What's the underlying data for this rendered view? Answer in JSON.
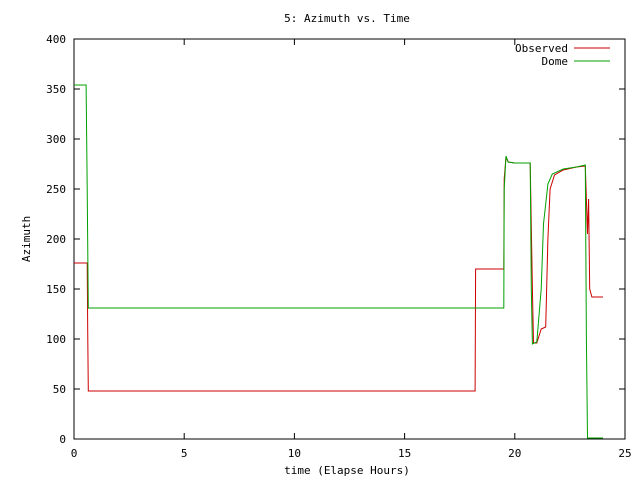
{
  "chart_data": {
    "type": "line",
    "title": "5: Azimuth vs. Time",
    "xlabel": "time (Elapse Hours)",
    "ylabel": "Azimuth",
    "xlim": [
      0,
      25
    ],
    "ylim": [
      0,
      400
    ],
    "xticks": [
      0,
      5,
      10,
      15,
      20,
      25
    ],
    "yticks": [
      0,
      50,
      100,
      150,
      200,
      250,
      300,
      350,
      400
    ],
    "grid": false,
    "legend": "top-right",
    "series": [
      {
        "name": "Observed",
        "color": "#cc0000",
        "points": [
          [
            0,
            176
          ],
          [
            0.6,
            176
          ],
          [
            0.62,
            110
          ],
          [
            0.65,
            48
          ],
          [
            18.2,
            48
          ],
          [
            18.22,
            170
          ],
          [
            19.5,
            170
          ],
          [
            19.52,
            260
          ],
          [
            19.6,
            282
          ],
          [
            19.7,
            277
          ],
          [
            20.0,
            276
          ],
          [
            20.7,
            276
          ],
          [
            20.8,
            150
          ],
          [
            20.85,
            96
          ],
          [
            21.0,
            96
          ],
          [
            21.2,
            110
          ],
          [
            21.4,
            112
          ],
          [
            21.5,
            200
          ],
          [
            21.6,
            250
          ],
          [
            21.8,
            264
          ],
          [
            22.2,
            269
          ],
          [
            22.8,
            272
          ],
          [
            23.2,
            273
          ],
          [
            23.3,
            205
          ],
          [
            23.35,
            240
          ],
          [
            23.4,
            150
          ],
          [
            23.5,
            142
          ],
          [
            24.0,
            142
          ]
        ]
      },
      {
        "name": "Dome",
        "color": "#00a000",
        "points": [
          [
            0,
            354
          ],
          [
            0.55,
            354
          ],
          [
            0.6,
            250
          ],
          [
            0.65,
            131
          ],
          [
            19.5,
            131
          ],
          [
            19.52,
            250
          ],
          [
            19.6,
            283
          ],
          [
            19.7,
            277
          ],
          [
            20.0,
            276
          ],
          [
            20.7,
            276
          ],
          [
            20.75,
            150
          ],
          [
            20.8,
            95
          ],
          [
            21.0,
            97
          ],
          [
            21.2,
            150
          ],
          [
            21.3,
            215
          ],
          [
            21.5,
            255
          ],
          [
            21.7,
            265
          ],
          [
            22.2,
            270
          ],
          [
            22.8,
            272
          ],
          [
            23.2,
            274
          ],
          [
            23.25,
            100
          ],
          [
            23.3,
            1
          ],
          [
            24.0,
            1
          ]
        ]
      }
    ]
  }
}
